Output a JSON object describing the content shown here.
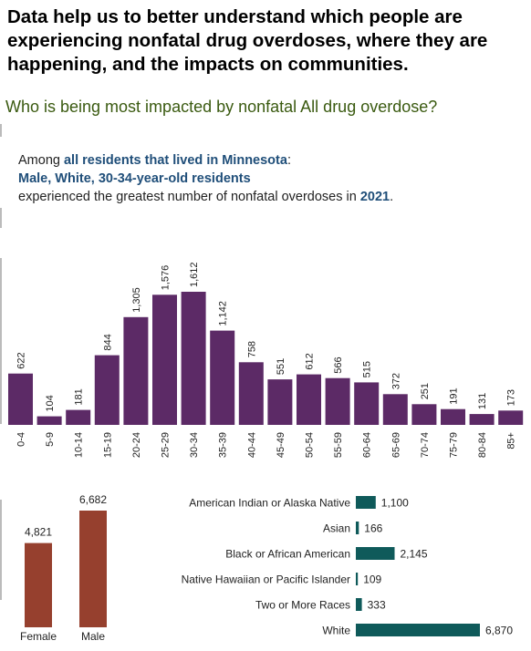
{
  "headline": "Data help us to better understand which people are experiencing nonfatal drug overdoses, where they are happening, and the impacts on communities.",
  "question": "Who is being most impacted by nonfatal All drug overdose?",
  "summary": {
    "line1_prefix": "Among ",
    "line1_bold": "all residents that lived in Minnesota",
    "line1_suffix": ":",
    "line2_bold": "Male, White, 30-34-year-old residents",
    "line3_prefix": "experienced the greatest number of nonfatal overdoses in ",
    "line3_year": "2021",
    "line3_suffix": "."
  },
  "colors": {
    "age_bar": "#5c2a66",
    "sex_bar": "#96402e",
    "race_bar": "#0f5a5a"
  },
  "chart_data": [
    {
      "type": "bar",
      "categories": [
        "0-4",
        "5-9",
        "10-14",
        "15-19",
        "20-24",
        "25-29",
        "30-34",
        "35-39",
        "40-44",
        "45-49",
        "50-54",
        "55-59",
        "60-64",
        "65-69",
        "70-74",
        "75-79",
        "80-84",
        "85+"
      ],
      "values": [
        622,
        104,
        181,
        844,
        1305,
        1576,
        1612,
        1142,
        758,
        551,
        612,
        566,
        515,
        372,
        251,
        191,
        131,
        173
      ],
      "value_labels": [
        "622",
        "104",
        "181",
        "844",
        "1,305",
        "1,576",
        "1,612",
        "1,142",
        "758",
        "551",
        "612",
        "566",
        "515",
        "372",
        "251",
        "191",
        "131",
        "173"
      ]
    },
    {
      "type": "bar",
      "categories": [
        "Female",
        "Male"
      ],
      "values": [
        4821,
        6682
      ],
      "value_labels": [
        "4,821",
        "6,682"
      ]
    },
    {
      "type": "bar",
      "orientation": "horizontal",
      "categories": [
        "American Indian or Alaska Native",
        "Asian",
        "Black or African American",
        "Native Hawaiian or Pacific Islander",
        "Two or More Races",
        "White"
      ],
      "values": [
        1100,
        166,
        2145,
        109,
        333,
        6870
      ],
      "value_labels": [
        "1,100",
        "166",
        "2,145",
        "109",
        "333",
        "6,870"
      ]
    }
  ]
}
